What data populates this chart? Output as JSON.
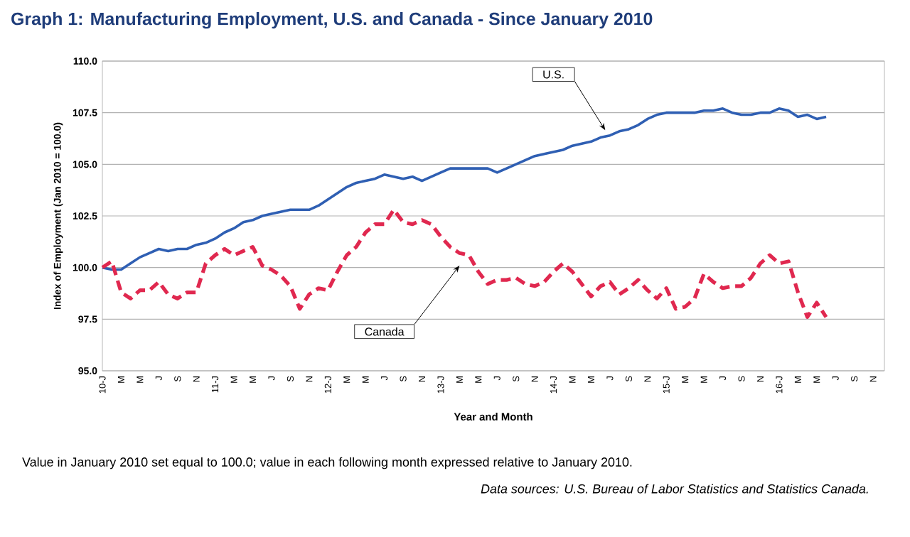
{
  "chart_data": {
    "type": "line",
    "title": "Graph 1: Manufacturing Employment, U.S. and Canada - Since January 2010",
    "xlabel": "Year and Month",
    "ylabel": "Index of Employment (Jan 2010 = 100.0)",
    "categories": [
      "10-J",
      null,
      "M",
      null,
      "M",
      null,
      "J",
      null,
      "S",
      null,
      "N",
      null,
      "11-J",
      null,
      "M",
      null,
      "M",
      null,
      "J",
      null,
      "S",
      null,
      "N",
      null,
      "12-J",
      null,
      "M",
      null,
      "M",
      null,
      "J",
      null,
      "S",
      null,
      "N",
      null,
      "13-J",
      null,
      "M",
      null,
      "M",
      null,
      "J",
      null,
      "S",
      null,
      "N",
      null,
      "14-J",
      null,
      "M",
      null,
      "M",
      null,
      "J",
      null,
      "S",
      null,
      "N",
      null,
      "15-J",
      null,
      "M",
      null,
      "M",
      null,
      "J",
      null,
      "S",
      null,
      "N",
      null,
      "16-J",
      null,
      "M",
      null,
      "M",
      null,
      "J",
      null,
      "S",
      null,
      "N",
      null
    ],
    "series": [
      {
        "name": "U.S.",
        "color": "#2f5fb3",
        "line_style": "solid",
        "values": [
          100.0,
          99.9,
          99.9,
          100.2,
          100.5,
          100.7,
          100.9,
          100.8,
          100.9,
          100.9,
          101.1,
          101.2,
          101.4,
          101.7,
          101.9,
          102.2,
          102.3,
          102.5,
          102.6,
          102.7,
          102.8,
          102.8,
          102.8,
          103.0,
          103.3,
          103.6,
          103.9,
          104.1,
          104.2,
          104.3,
          104.5,
          104.4,
          104.3,
          104.4,
          104.2,
          104.4,
          104.6,
          104.8,
          104.8,
          104.8,
          104.8,
          104.8,
          104.6,
          104.8,
          105.0,
          105.2,
          105.4,
          105.5,
          105.6,
          105.7,
          105.9,
          106.0,
          106.1,
          106.3,
          106.4,
          106.6,
          106.7,
          106.9,
          107.2,
          107.4,
          107.5,
          107.5,
          107.5,
          107.5,
          107.6,
          107.6,
          107.7,
          107.5,
          107.4,
          107.4,
          107.5,
          107.5,
          107.7,
          107.6,
          107.3,
          107.4,
          107.2,
          107.3,
          null,
          null,
          null,
          null,
          null,
          null
        ]
      },
      {
        "name": "Canada",
        "color": "#e0284f",
        "line_style": "dashed",
        "values": [
          100.0,
          100.3,
          98.8,
          98.5,
          98.9,
          98.9,
          99.3,
          98.7,
          98.5,
          98.8,
          98.8,
          100.2,
          100.6,
          100.9,
          100.6,
          100.8,
          101.0,
          100.1,
          99.9,
          99.6,
          99.1,
          98.0,
          98.7,
          99.0,
          98.9,
          99.8,
          100.6,
          101.0,
          101.7,
          102.1,
          102.1,
          102.8,
          102.2,
          102.1,
          102.3,
          102.1,
          101.5,
          101.0,
          100.7,
          100.6,
          99.8,
          99.2,
          99.4,
          99.4,
          99.5,
          99.2,
          99.1,
          99.3,
          99.8,
          100.2,
          99.8,
          99.2,
          98.6,
          99.1,
          99.3,
          98.7,
          99.0,
          99.4,
          98.9,
          98.5,
          99.0,
          98.0,
          98.1,
          98.5,
          99.7,
          99.3,
          99.0,
          99.1,
          99.1,
          99.5,
          100.2,
          100.6,
          100.2,
          100.3,
          98.8,
          97.6,
          98.3,
          97.6,
          null,
          null,
          null,
          null,
          null,
          null
        ]
      }
    ],
    "ylim": [
      95,
      110
    ],
    "yticks": [
      {
        "value": 95,
        "label": "95.0"
      },
      {
        "value": 97.5,
        "label": "97.5"
      },
      {
        "value": 100,
        "label": "100.0"
      },
      {
        "value": 102.5,
        "label": "102.5"
      },
      {
        "value": 105,
        "label": "105.0"
      },
      {
        "value": 107.5,
        "label": "107.5"
      },
      {
        "value": 110,
        "label": "110.0"
      }
    ],
    "grid": "y",
    "marker": "none",
    "annotations": [
      "Value in January 2010 set equal to 100.0; value in each following month expressed relative to January 2010.",
      "Data sources: U.S. Bureau of Labor Statistics and Statistics Canada."
    ]
  }
}
